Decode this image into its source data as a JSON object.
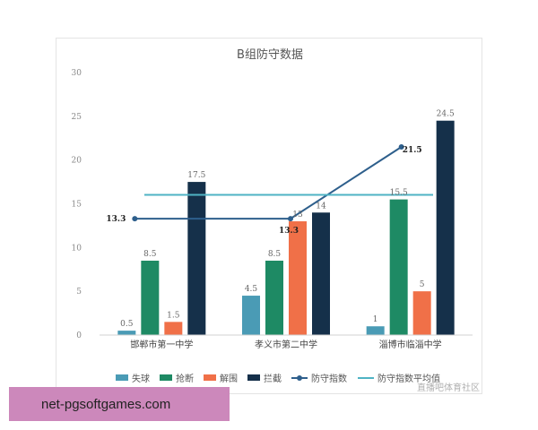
{
  "chart_data": {
    "type": "bar",
    "title": "B组防守数据",
    "categories": [
      "邯郸市第一中学",
      "孝义市第二中学",
      "淄博市临淄中学"
    ],
    "ylim": [
      0,
      30
    ],
    "yticks": [
      "0",
      "5",
      "10",
      "15",
      "20",
      "25",
      "30"
    ],
    "grid": false,
    "legend_position": "bottom",
    "series": [
      {
        "name": "失球",
        "type": "bar",
        "color": "#4a9bb5",
        "values": [
          0.5,
          4.5,
          1
        ],
        "labels": [
          "0.5",
          "4.5",
          "1"
        ]
      },
      {
        "name": "抢断",
        "type": "bar",
        "color": "#1e8a64",
        "values": [
          8.5,
          8.5,
          15.5
        ],
        "labels": [
          "8.5",
          "8.5",
          "15.5"
        ]
      },
      {
        "name": "解围",
        "type": "bar",
        "color": "#f07048",
        "values": [
          1.5,
          13,
          5
        ],
        "labels": [
          "1.5",
          "13",
          "5"
        ]
      },
      {
        "name": "拦截",
        "type": "bar",
        "color": "#15304a",
        "values": [
          17.5,
          14,
          24.5
        ],
        "labels": [
          "17.5",
          "14",
          "24.5"
        ]
      },
      {
        "name": "防守指数",
        "type": "line",
        "color": "#2e5f8c",
        "values": [
          13.3,
          13.3,
          21.5
        ],
        "labels": [
          "13.3",
          "13.3",
          "21.5"
        ]
      },
      {
        "name": "防守指数平均值",
        "type": "line",
        "color": "#4fb3c4",
        "values": [
          16.03,
          16.03,
          16.03
        ]
      }
    ]
  },
  "watermark": {
    "text": "net-pgsoftgames.com",
    "credit": "直播吧体育社区"
  }
}
